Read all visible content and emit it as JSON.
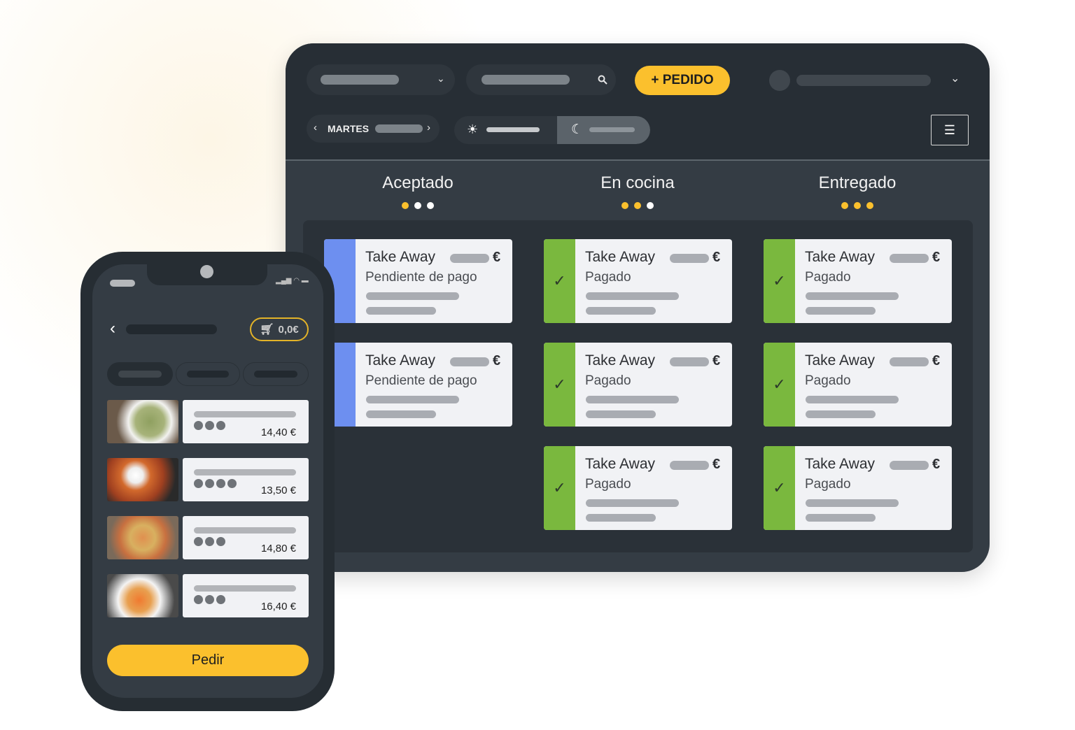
{
  "tablet": {
    "new_order_button": "+ PEDIDO",
    "day_label": "MARTES",
    "columns": [
      {
        "title": "Aceptado",
        "dots": [
          "#fbc02d",
          "#ffffff",
          "#ffffff"
        ],
        "cards": [
          {
            "title": "Take Away",
            "currency": "€",
            "status": "Pendiente de pago",
            "state": "pending"
          },
          {
            "title": "Take Away",
            "currency": "€",
            "status": "Pendiente de pago",
            "state": "pending"
          }
        ]
      },
      {
        "title": "En cocina",
        "dots": [
          "#fbc02d",
          "#fbc02d",
          "#ffffff"
        ],
        "cards": [
          {
            "title": "Take Away",
            "currency": "€",
            "status": "Pagado",
            "state": "paid"
          },
          {
            "title": "Take Away",
            "currency": "€",
            "status": "Pagado",
            "state": "paid"
          },
          {
            "title": "Take Away",
            "currency": "€",
            "status": "Pagado",
            "state": "paid"
          }
        ]
      },
      {
        "title": "Entregado",
        "dots": [
          "#fbc02d",
          "#fbc02d",
          "#fbc02d"
        ],
        "cards": [
          {
            "title": "Take Away",
            "currency": "€",
            "status": "Pagado",
            "state": "paid"
          },
          {
            "title": "Take Away",
            "currency": "€",
            "status": "Pagado",
            "state": "paid"
          },
          {
            "title": "Take Away",
            "currency": "€",
            "status": "Pagado",
            "state": "paid"
          }
        ]
      }
    ],
    "colors": {
      "pending": "#6d8ff0",
      "paid": "#7ab83e",
      "accent": "#fbc02d"
    }
  },
  "phone": {
    "cart_total": "0,0€",
    "items": [
      {
        "price": "14,40 €",
        "rating_dots": 3,
        "image": "pesto-pasta"
      },
      {
        "price": "13,50 €",
        "rating_dots": 4,
        "image": "pasta-burrata"
      },
      {
        "price": "14,80 €",
        "rating_dots": 3,
        "image": "seafood-spaghetti"
      },
      {
        "price": "16,40 €",
        "rating_dots": 3,
        "image": "tomato-pasta"
      }
    ],
    "order_button": "Pedir"
  }
}
